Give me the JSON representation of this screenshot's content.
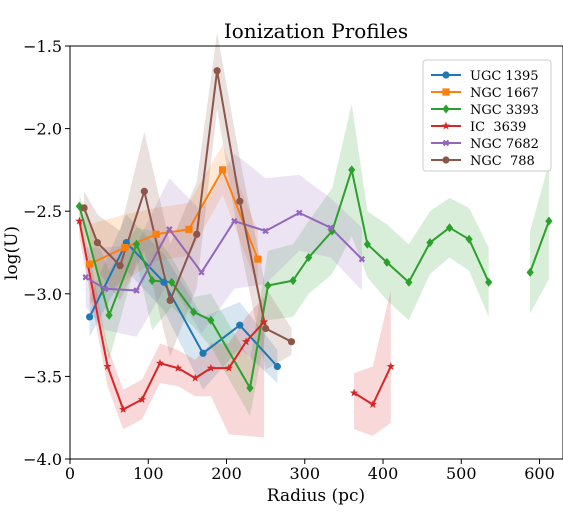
{
  "chart_data": {
    "type": "line",
    "title": "Ionization Profiles",
    "xlabel": "Radius (pc)",
    "ylabel": "log(U)",
    "xlim": [
      0,
      630
    ],
    "ylim": [
      -4.0,
      -1.5
    ],
    "xticks": [
      0,
      100,
      200,
      300,
      400,
      500,
      600
    ],
    "xtick_labels": [
      "0",
      "100",
      "200",
      "300",
      "400",
      "500",
      "600"
    ],
    "yticks": [
      -4.0,
      -3.5,
      -3.0,
      -2.5,
      -2.0,
      -1.5
    ],
    "ytick_labels": [
      "−4.0",
      "−3.5",
      "−3.0",
      "−2.5",
      "−2.0",
      "−1.5"
    ],
    "grid": false,
    "legend": "top-right",
    "series": [
      {
        "name": "UGC 1395",
        "color": "#1f77b4",
        "marker": "circle",
        "segments": [
          {
            "x": [
              25,
              72,
              120,
              170,
              217,
              265
            ],
            "y": [
              -3.14,
              -2.69,
              -2.93,
              -3.36,
              -3.19,
              -3.44
            ],
            "upper": [
              -3.02,
              -2.52,
              -2.76,
              -3.14,
              -3.05,
              -3.34
            ],
            "lower": [
              -3.26,
              -2.86,
              -3.1,
              -3.58,
              -3.33,
              -3.54
            ]
          }
        ]
      },
      {
        "name": "NGC 1667",
        "color": "#ff7f0e",
        "marker": "square",
        "segments": [
          {
            "x": [
              25,
              70,
              110,
              152,
              195,
              240
            ],
            "y": [
              -2.82,
              -2.72,
              -2.64,
              -2.61,
              -2.25,
              -2.79
            ],
            "upper": [
              -2.58,
              -2.52,
              -2.48,
              -2.45,
              -2.1,
              -2.62
            ],
            "lower": [
              -3.06,
              -2.92,
              -2.8,
              -2.77,
              -2.4,
              -2.96
            ]
          }
        ]
      },
      {
        "name": "NGC 3393",
        "color": "#2ca02c",
        "marker": "diamond",
        "segments": [
          {
            "x": [
              12,
              50,
              85,
              105,
              130,
              158,
              180,
              230,
              253,
              285,
              305,
              335,
              360,
              380,
              405,
              433,
              460,
              485,
              510,
              535
            ],
            "y": [
              -2.47,
              -3.13,
              -2.7,
              -2.92,
              -2.93,
              -3.11,
              -3.16,
              -3.57,
              -2.95,
              -2.92,
              -2.78,
              -2.62,
              -2.25,
              -2.7,
              -2.81,
              -2.93,
              -2.69,
              -2.6,
              -2.67,
              -2.93
            ],
            "upper": [
              -2.4,
              -2.86,
              -2.6,
              -2.62,
              -2.78,
              -3.02,
              -3.0,
              -3.4,
              -2.74,
              -2.7,
              -2.56,
              -2.36,
              -1.85,
              -2.5,
              -2.58,
              -2.7,
              -2.5,
              -2.42,
              -2.48,
              -2.72
            ],
            "lower": [
              -2.54,
              -3.4,
              -2.8,
              -3.22,
              -3.08,
              -3.2,
              -3.32,
              -3.74,
              -3.16,
              -3.14,
              -3.0,
              -2.88,
              -2.65,
              -2.9,
              -3.04,
              -3.16,
              -2.88,
              -2.78,
              -2.86,
              -3.14
            ]
          },
          {
            "x": [
              588,
              612
            ],
            "y": [
              -2.87,
              -2.56
            ],
            "upper": [
              -2.62,
              -2.21
            ],
            "lower": [
              -3.12,
              -2.91
            ]
          }
        ]
      },
      {
        "name": "IC  3639",
        "color": "#d62728",
        "marker": "star",
        "segments": [
          {
            "x": [
              12,
              48,
              68,
              92,
              115,
              138,
              160,
              180,
              203,
              225,
              248
            ],
            "y": [
              -2.56,
              -3.44,
              -3.7,
              -3.64,
              -3.42,
              -3.45,
              -3.51,
              -3.45,
              -3.45,
              -3.29,
              -3.17
            ],
            "upper": [
              -2.46,
              -3.32,
              -3.58,
              -3.52,
              -3.3,
              -3.34,
              -3.4,
              -3.3,
              -3.3,
              -3.14,
              -3.02
            ],
            "lower": [
              -2.66,
              -3.56,
              -3.82,
              -3.76,
              -3.54,
              -3.56,
              -3.62,
              -3.62,
              -3.85,
              -3.86,
              -3.87
            ]
          },
          {
            "x": [
              363,
              387,
              410
            ],
            "y": [
              -3.6,
              -3.67,
              -3.44
            ],
            "upper": [
              -3.48,
              -3.44,
              -2.98
            ],
            "lower": [
              -3.82,
              -3.86,
              -3.78
            ]
          }
        ]
      },
      {
        "name": "NGC 7682",
        "color": "#9467bd",
        "marker": "x",
        "segments": [
          {
            "x": [
              20,
              45,
              85,
              127,
              168,
              210,
              250,
              293,
              333,
              373
            ],
            "y": [
              -2.9,
              -2.97,
              -2.98,
              -2.61,
              -2.87,
              -2.56,
              -2.62,
              -2.51,
              -2.6,
              -2.79
            ],
            "upper": [
              -2.72,
              -2.72,
              -2.7,
              -2.3,
              -2.5,
              -2.15,
              -2.3,
              -2.28,
              -2.42,
              -2.6
            ],
            "lower": [
              -3.08,
              -3.22,
              -3.26,
              -2.92,
              -3.24,
              -2.97,
              -2.94,
              -2.74,
              -2.78,
              -2.98
            ]
          }
        ]
      },
      {
        "name": "NGC  788",
        "color": "#8c564b",
        "marker": "circle",
        "segments": [
          {
            "x": [
              18,
              35,
              64,
              95,
              128,
              162,
              188,
              217,
              250,
              283
            ],
            "y": [
              -2.48,
              -2.69,
              -2.83,
              -2.38,
              -3.04,
              -2.64,
              -1.65,
              -2.44,
              -3.21,
              -3.29
            ],
            "upper": [
              -2.38,
              -2.52,
              -2.62,
              -2.02,
              -2.7,
              -2.32,
              -1.42,
              -2.18,
              -2.96,
              -3.21
            ],
            "lower": [
              -2.58,
              -2.86,
              -3.04,
              -2.74,
              -3.38,
              -2.96,
              -1.88,
              -2.7,
              -3.46,
              -3.37
            ]
          }
        ]
      }
    ]
  }
}
